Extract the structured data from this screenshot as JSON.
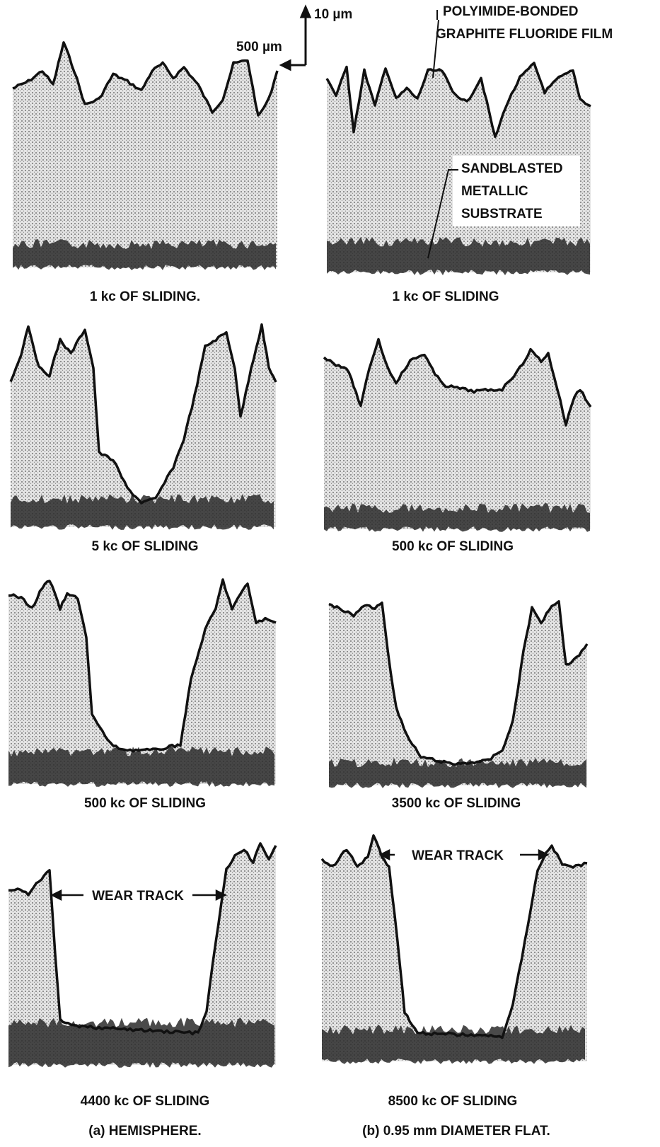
{
  "scale": {
    "vertical": "10 µm",
    "horizontal": "500 µm"
  },
  "annotations": {
    "film": [
      "POLYIMIDE-BONDED",
      "GRAPHITE FLUORIDE FILM"
    ],
    "substrate": [
      "SANDBLASTED",
      "METALLIC",
      "SUBSTRATE"
    ],
    "wear_track_a": "WEAR TRACK",
    "wear_track_b": "WEAR TRACK"
  },
  "panels": [
    {
      "caption": "1 kc OF SLIDING."
    },
    {
      "caption": "1 kc OF SLIDING"
    },
    {
      "caption": "5 kc OF SLIDING"
    },
    {
      "caption": "500 kc OF SLIDING"
    },
    {
      "caption": "500 kc OF SLIDING"
    },
    {
      "caption": "3500 kc OF SLIDING"
    },
    {
      "caption": "4400 kc OF SLIDING"
    },
    {
      "caption": "8500 kc OF SLIDING"
    }
  ],
  "columns": [
    "(a) HEMISPHERE.",
    "(b) 0.95 mm DIAMETER FLAT."
  ]
}
